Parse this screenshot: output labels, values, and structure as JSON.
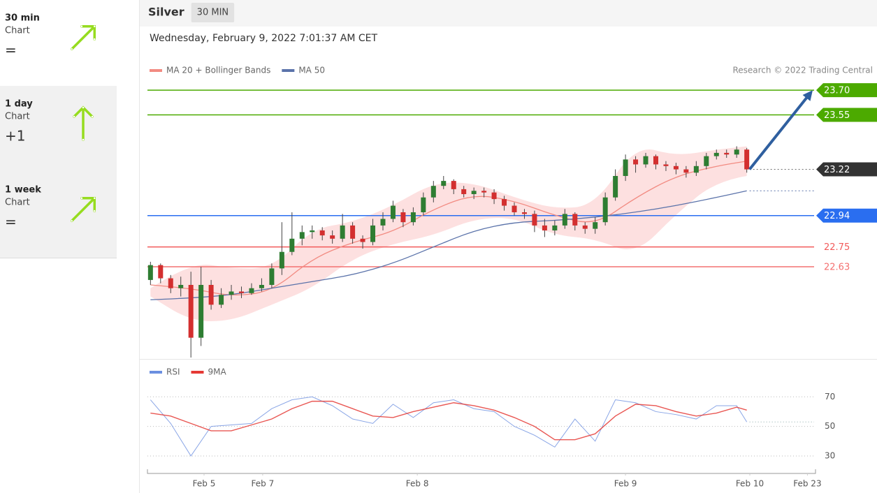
{
  "sidebar": [
    {
      "period": "30 min",
      "label": "Chart",
      "score": "=",
      "arrow": "up-right"
    },
    {
      "period": "1 day",
      "label": "Chart",
      "score": "+1",
      "arrow": "up"
    },
    {
      "period": "1 week",
      "label": "Chart",
      "score": "=",
      "arrow": "up-right"
    }
  ],
  "header": {
    "instrument": "Silver",
    "interval": "30 MIN",
    "timestamp": "Wednesday, February 9, 2022 7:01:37 AM CET"
  },
  "chart_data": [
    {
      "type": "candlestick",
      "credit": "Research © 2022 Trading Central",
      "xlim": [
        -0.3,
        65.8
      ],
      "ylim": [
        22.08,
        23.95
      ],
      "up_color": "#2e7d32",
      "down_color": "#d32f2f",
      "arrow_color": "#2f5f9f",
      "open": [
        22.55,
        22.64,
        22.56,
        22.5,
        22.52,
        22.2,
        22.52,
        22.4,
        22.46,
        22.48,
        22.47,
        22.5,
        22.52,
        22.62,
        22.72,
        22.8,
        22.84,
        22.85,
        22.82,
        22.8,
        22.88,
        22.8,
        22.78,
        22.88,
        22.92,
        22.96,
        22.9,
        22.96,
        23.05,
        23.12,
        23.15,
        23.1,
        23.07,
        23.09,
        23.08,
        23.04,
        23.0,
        22.96,
        22.95,
        22.88,
        22.85,
        22.88,
        22.95,
        22.88,
        22.86,
        22.9,
        23.05,
        23.18,
        23.28,
        23.25,
        23.3,
        23.25,
        23.24,
        23.22,
        23.2,
        23.24,
        23.3,
        23.32,
        23.31,
        23.34
      ],
      "high": [
        22.66,
        22.65,
        22.58,
        22.57,
        22.6,
        22.63,
        22.55,
        22.5,
        22.52,
        22.51,
        22.53,
        22.56,
        22.65,
        22.9,
        22.96,
        22.88,
        22.88,
        22.87,
        22.85,
        22.95,
        22.9,
        22.82,
        22.92,
        22.96,
        23.03,
        22.98,
        22.99,
        23.08,
        23.15,
        23.18,
        23.16,
        23.12,
        23.11,
        23.11,
        23.1,
        23.06,
        23.02,
        22.98,
        22.97,
        22.92,
        22.91,
        22.98,
        22.96,
        22.9,
        22.93,
        23.08,
        23.22,
        23.31,
        23.3,
        23.32,
        23.31,
        23.27,
        23.26,
        23.24,
        23.27,
        23.32,
        23.34,
        23.34,
        23.36,
        23.35
      ],
      "low": [
        22.52,
        22.53,
        22.47,
        22.45,
        22.08,
        22.15,
        22.37,
        22.38,
        22.43,
        22.44,
        22.46,
        22.48,
        22.5,
        22.58,
        22.7,
        22.76,
        22.8,
        22.79,
        22.77,
        22.78,
        22.77,
        22.74,
        22.76,
        22.85,
        22.9,
        22.87,
        22.88,
        22.94,
        23.02,
        23.1,
        23.07,
        23.05,
        23.04,
        23.05,
        23.01,
        22.97,
        22.94,
        22.92,
        22.84,
        22.81,
        22.82,
        22.86,
        22.85,
        22.83,
        22.83,
        22.88,
        23.03,
        23.15,
        23.2,
        23.23,
        23.22,
        23.21,
        23.19,
        23.17,
        23.18,
        23.22,
        23.28,
        23.29,
        23.29,
        23.2
      ],
      "close": [
        22.64,
        22.56,
        22.5,
        22.52,
        22.2,
        22.52,
        22.4,
        22.46,
        22.48,
        22.47,
        22.5,
        22.52,
        22.62,
        22.72,
        22.8,
        22.84,
        22.85,
        22.82,
        22.8,
        22.88,
        22.8,
        22.78,
        22.88,
        22.92,
        23.0,
        22.9,
        22.96,
        23.05,
        23.12,
        23.15,
        23.1,
        23.07,
        23.09,
        23.08,
        23.04,
        23.0,
        22.96,
        22.95,
        22.88,
        22.85,
        22.88,
        22.95,
        22.88,
        22.86,
        22.9,
        23.05,
        23.18,
        23.28,
        23.25,
        23.3,
        23.25,
        23.24,
        23.22,
        23.2,
        23.24,
        23.3,
        23.32,
        23.31,
        23.34,
        23.22
      ],
      "series": [
        {
          "name": "MA 20 + Bollinger Bands",
          "color": "#f28b82",
          "band_color": "#fde0e0",
          "x": [
            0,
            4,
            8,
            12,
            16,
            20,
            24,
            28,
            32,
            36,
            40,
            44,
            48,
            52,
            56,
            59
          ],
          "values": [
            22.52,
            22.5,
            22.45,
            22.48,
            22.68,
            22.78,
            22.84,
            22.98,
            23.07,
            23.03,
            22.94,
            22.88,
            23.05,
            23.18,
            23.24,
            23.27
          ],
          "upper": [
            22.5,
            22.66,
            22.62,
            22.62,
            22.86,
            22.9,
            23.0,
            23.14,
            23.14,
            23.05,
            22.98,
            23.0,
            23.37,
            23.3,
            23.34,
            23.36
          ],
          "lower": [
            22.45,
            22.3,
            22.3,
            22.4,
            22.5,
            22.68,
            22.77,
            22.82,
            22.92,
            22.93,
            22.82,
            22.8,
            22.7,
            22.95,
            23.15,
            23.18
          ]
        },
        {
          "name": "MA 50",
          "color": "#5b73aa",
          "x": [
            0,
            4,
            8,
            12,
            16,
            20,
            24,
            28,
            32,
            36,
            40,
            44,
            48,
            52,
            56,
            59
          ],
          "values": [
            22.43,
            22.44,
            22.46,
            22.5,
            22.54,
            22.58,
            22.65,
            22.75,
            22.85,
            22.9,
            22.91,
            22.93,
            22.96,
            23.0,
            23.05,
            23.09
          ]
        }
      ],
      "levels": [
        {
          "value": 23.7,
          "label": "23.70",
          "color": "#4caa00",
          "tag": true
        },
        {
          "value": 23.55,
          "label": "23.55",
          "color": "#4caa00",
          "tag": true
        },
        {
          "value": 23.22,
          "label": "23.22",
          "color": "#333333",
          "tag": true,
          "dotted": true
        },
        {
          "value": 22.94,
          "label": "22.94",
          "color": "#2a6ef0",
          "tag": true
        },
        {
          "value": 22.75,
          "label": "22.75",
          "color": "#f25a5a",
          "tag": false
        },
        {
          "value": 22.63,
          "label": "22.63",
          "color": "#f47070",
          "tag": false
        }
      ]
    },
    {
      "type": "line",
      "xlim": [
        -0.3,
        65.8
      ],
      "ylim": [
        21,
        81
      ],
      "yticks": [
        30,
        50,
        70
      ],
      "grid": true,
      "xticks": [
        {
          "value": 5.3,
          "label": "Feb 5"
        },
        {
          "value": 11.1,
          "label": "Feb 7"
        },
        {
          "value": 26.4,
          "label": "Feb 8"
        },
        {
          "value": 47.0,
          "label": "Feb 9"
        },
        {
          "value": 59.3,
          "label": "Feb 10"
        },
        {
          "value": 65.0,
          "label": "Feb 23"
        }
      ],
      "x": [
        0,
        2,
        4,
        6,
        8,
        10,
        12,
        14,
        16,
        18,
        20,
        22,
        24,
        26,
        28,
        30,
        32,
        34,
        36,
        38,
        40,
        42,
        44,
        46,
        48,
        50,
        52,
        54,
        56,
        58,
        59
      ],
      "series": [
        {
          "name": "RSI",
          "color": "#6b8fe0",
          "values": [
            68,
            52,
            30,
            50,
            51,
            52,
            62,
            68,
            70,
            64,
            55,
            52,
            65,
            56,
            66,
            68,
            62,
            60,
            50,
            44,
            36,
            55,
            40,
            68,
            66,
            60,
            58,
            55,
            64,
            64,
            53
          ]
        },
        {
          "name": "9MA",
          "color": "#e53935",
          "values": [
            59,
            57,
            52,
            47,
            47,
            51,
            55,
            62,
            67,
            67,
            62,
            57,
            56,
            60,
            63,
            66,
            64,
            61,
            56,
            50,
            41,
            41,
            45,
            57,
            65,
            64,
            60,
            57,
            59,
            63,
            61
          ]
        }
      ]
    }
  ]
}
